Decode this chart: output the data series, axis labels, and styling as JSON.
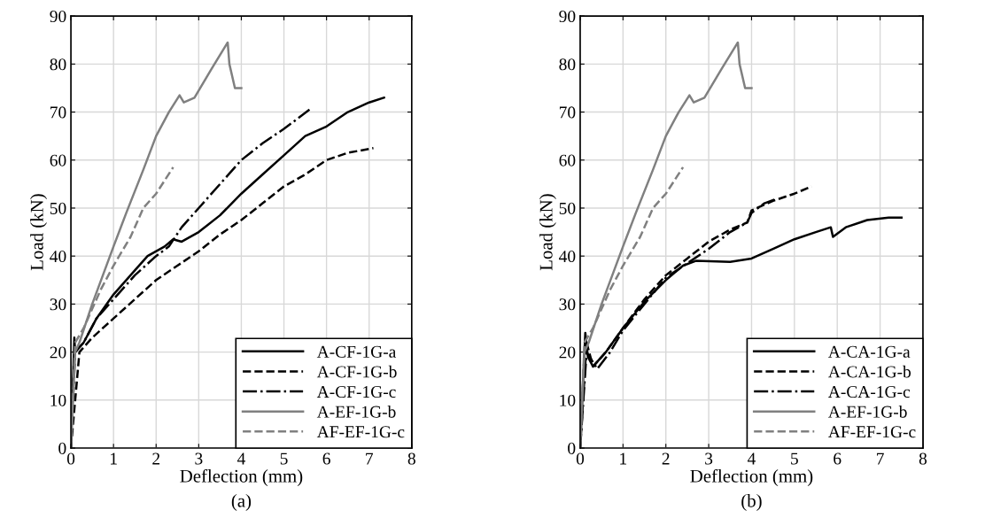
{
  "chart_data": [
    {
      "type": "line",
      "xlabel": "Deflection (mm)",
      "ylabel": "Load (kN)",
      "annotations": [
        "(a)"
      ],
      "xlim": [
        0,
        8
      ],
      "ylim": [
        0,
        90
      ],
      "xticks": [
        0,
        1,
        2,
        3,
        4,
        5,
        6,
        7,
        8
      ],
      "yticks": [
        0,
        10,
        20,
        30,
        40,
        50,
        60,
        70,
        80,
        90
      ],
      "grid": true,
      "legend": "bottom right",
      "series": [
        {
          "name": "A-CF-1G-a",
          "color": "#000000",
          "line_style": "solid",
          "x": [
            0,
            0.08,
            0.1,
            0.3,
            0.6,
            1,
            1.5,
            1.8,
            2.2,
            2.4,
            2.6,
            3,
            3.5,
            4,
            4.5,
            5,
            5.5,
            6,
            6.5,
            7,
            7.35
          ],
          "values": [
            0,
            23,
            20,
            22,
            27,
            32,
            37,
            40,
            42,
            43.5,
            43,
            45,
            48.5,
            53,
            57,
            61,
            65,
            67,
            70,
            72,
            73
          ]
        },
        {
          "name": "A-CF-1G-b",
          "color": "#000000",
          "line_style": "dashed",
          "x": [
            0,
            0.15,
            0.2,
            0.5,
            1,
            1.5,
            2,
            2.5,
            3,
            3.5,
            4,
            4.5,
            5,
            5.5,
            6,
            6.5,
            7.1
          ],
          "values": [
            0,
            15,
            20,
            23,
            27,
            31,
            35,
            38,
            41,
            44.5,
            47.5,
            51,
            54.5,
            57,
            60,
            61.5,
            62.5
          ]
        },
        {
          "name": "A-CF-1G-c",
          "color": "#000000",
          "line_style": "dashdot",
          "x": [
            0,
            0.1,
            0.3,
            0.6,
            1,
            1.5,
            2,
            2.3,
            2.6,
            3,
            3.5,
            4,
            4.5,
            5,
            5.6
          ],
          "values": [
            0,
            20,
            22,
            27,
            31,
            36,
            40,
            42,
            46,
            50,
            55,
            60,
            63.5,
            66.5,
            70.5
          ]
        },
        {
          "name": "A-EF-1G-b",
          "color": "#808080",
          "line_style": "solid",
          "x": [
            0,
            0.1,
            0.2,
            0.5,
            1,
            1.3,
            1.7,
            2,
            2.3,
            2.55,
            2.65,
            2.9,
            3.3,
            3.68,
            3.72,
            3.85,
            4
          ],
          "values": [
            0,
            20,
            22,
            30,
            42,
            49,
            58,
            65,
            70,
            73.5,
            72,
            73,
            79,
            84.5,
            80,
            75,
            75
          ]
        },
        {
          "name": "AF-EF-1G-c",
          "color": "#808080",
          "line_style": "dashed",
          "x": [
            0,
            0.1,
            0.3,
            0.7,
            1,
            1.4,
            1.7,
            2,
            2.4
          ],
          "values": [
            0,
            22,
            25,
            33,
            38,
            44,
            50,
            53,
            58.5
          ]
        }
      ]
    },
    {
      "type": "line",
      "xlabel": "Deflection (mm)",
      "ylabel": "Load (kN)",
      "annotations": [
        "(b)"
      ],
      "xlim": [
        0,
        8
      ],
      "ylim": [
        0,
        90
      ],
      "xticks": [
        0,
        1,
        2,
        3,
        4,
        5,
        6,
        7,
        8
      ],
      "yticks": [
        0,
        10,
        20,
        30,
        40,
        50,
        60,
        70,
        80,
        90
      ],
      "grid": true,
      "legend": "bottom right",
      "series": [
        {
          "name": "A-CA-1G-a",
          "color": "#000000",
          "line_style": "solid",
          "x": [
            0,
            0.12,
            0.18,
            0.3,
            0.6,
            1,
            1.5,
            2,
            2.4,
            2.7,
            3.5,
            4,
            4.5,
            5,
            5.5,
            5.85,
            5.9,
            6.2,
            6.7,
            7.2,
            7.5
          ],
          "values": [
            0,
            24,
            19,
            17,
            20,
            25,
            30.5,
            35,
            38,
            39,
            38.8,
            39.5,
            41.5,
            43.5,
            45,
            46,
            44,
            46,
            47.5,
            48,
            48
          ]
        },
        {
          "name": "A-CA-1G-b",
          "color": "#000000",
          "line_style": "dashed",
          "x": [
            0,
            0.15,
            0.3,
            0.6,
            1,
            1.5,
            2,
            2.5,
            3,
            3.5,
            3.9,
            4,
            4.5,
            5,
            5.4
          ],
          "values": [
            0,
            22,
            17,
            20,
            25,
            31,
            36,
            39.5,
            43,
            45.5,
            47,
            49.5,
            51.5,
            53,
            54.5
          ]
        },
        {
          "name": "A-CA-1G-c",
          "color": "#000000",
          "line_style": "dashdot",
          "x": [
            0,
            0.15,
            0.4,
            0.7,
            1,
            1.5,
            2,
            2.5,
            3,
            3.5,
            3.9,
            4,
            4.3,
            4.6
          ],
          "values": [
            0,
            20,
            16.5,
            20,
            24.5,
            30,
            35.5,
            38.5,
            41.5,
            45,
            47,
            49,
            51,
            52
          ]
        },
        {
          "name": "A-EF-1G-b",
          "color": "#808080",
          "line_style": "solid",
          "x": [
            0,
            0.1,
            0.2,
            0.5,
            1,
            1.3,
            1.7,
            2,
            2.3,
            2.55,
            2.65,
            2.9,
            3.3,
            3.68,
            3.72,
            3.85,
            4
          ],
          "values": [
            0,
            20,
            22,
            30,
            42,
            49,
            58,
            65,
            70,
            73.5,
            72,
            73,
            79,
            84.5,
            80,
            75,
            75
          ]
        },
        {
          "name": "AF-EF-1G-c",
          "color": "#808080",
          "line_style": "dashed",
          "x": [
            0,
            0.1,
            0.3,
            0.7,
            1,
            1.4,
            1.7,
            2,
            2.4
          ],
          "values": [
            0,
            22,
            25,
            33,
            38,
            44,
            50,
            53,
            58.5
          ]
        }
      ]
    }
  ]
}
